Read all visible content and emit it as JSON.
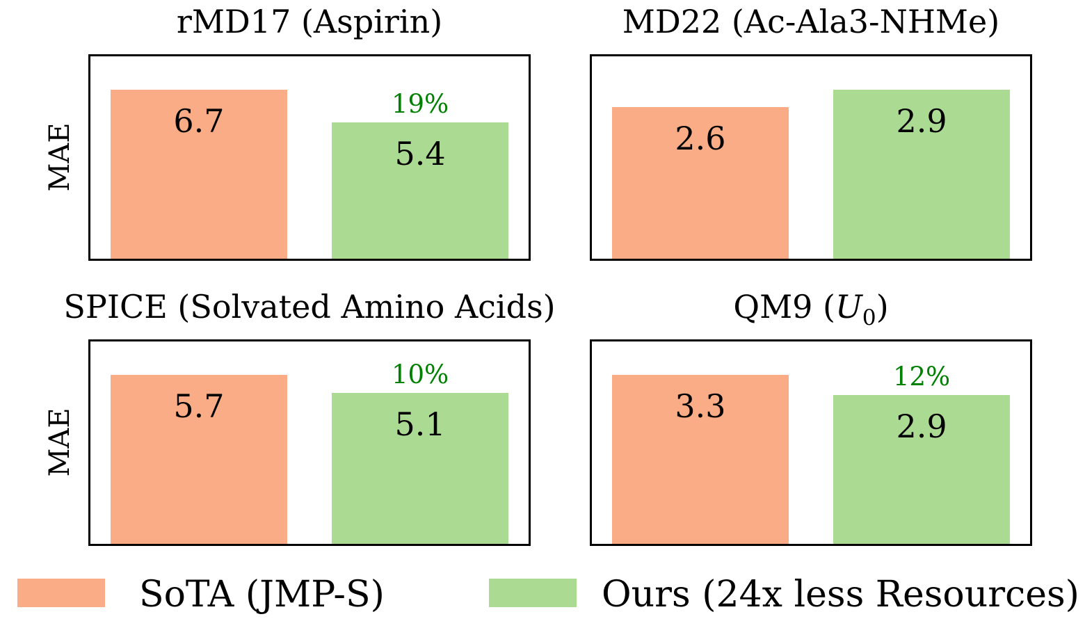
{
  "colors": {
    "sota": "#faac87",
    "ours": "#abdb93",
    "improvement_text": "#008000",
    "frame": "#000000",
    "text": "#000000",
    "background": "#ffffff"
  },
  "legend": {
    "position": "bottom",
    "items": [
      {
        "label": "SoTA (JMP-S)",
        "color": "#faac87"
      },
      {
        "label": "Ours (24x less Resources)",
        "color": "#abdb93"
      }
    ]
  },
  "chart_data": [
    {
      "type": "bar",
      "title": "rMD17 (Aspirin)",
      "ylabel": "MAE",
      "categories": [
        "SoTA (JMP-S)",
        "Ours (24x less Resources)"
      ],
      "series": [
        {
          "name": "SoTA (JMP-S)",
          "value": 6.7
        },
        {
          "name": "Ours (24x less Resources)",
          "value": 5.4
        }
      ],
      "improvement_label": "19%",
      "ylim": [
        0,
        8.0
      ],
      "grid": false,
      "ticks": "none"
    },
    {
      "type": "bar",
      "title": "MD22 (Ac-Ala3-NHMe)",
      "categories": [
        "SoTA (JMP-S)",
        "Ours (24x less Resources)"
      ],
      "series": [
        {
          "name": "SoTA (JMP-S)",
          "value": 2.6
        },
        {
          "name": "Ours (24x less Resources)",
          "value": 2.9
        }
      ],
      "ylim": [
        0,
        3.5
      ],
      "grid": false,
      "ticks": "none"
    },
    {
      "type": "bar",
      "title": "SPICE (Solvated Amino Acids)",
      "ylabel": "MAE",
      "categories": [
        "SoTA (JMP-S)",
        "Ours (24x less Resources)"
      ],
      "series": [
        {
          "name": "SoTA (JMP-S)",
          "value": 5.7
        },
        {
          "name": "Ours (24x less Resources)",
          "value": 5.1
        }
      ],
      "improvement_label": "10%",
      "ylim": [
        0,
        6.8
      ],
      "grid": false,
      "ticks": "none"
    },
    {
      "type": "bar",
      "title": "QM9 (U0)",
      "title_parts": {
        "prefix": "QM9 (",
        "variable": "U",
        "subscript": "0",
        "suffix": ")"
      },
      "categories": [
        "SoTA (JMP-S)",
        "Ours (24x less Resources)"
      ],
      "series": [
        {
          "name": "SoTA (JMP-S)",
          "value": 3.3
        },
        {
          "name": "Ours (24x less Resources)",
          "value": 2.9
        }
      ],
      "improvement_label": "12%",
      "ylim": [
        0,
        4.0
      ],
      "grid": false,
      "ticks": "none"
    }
  ]
}
